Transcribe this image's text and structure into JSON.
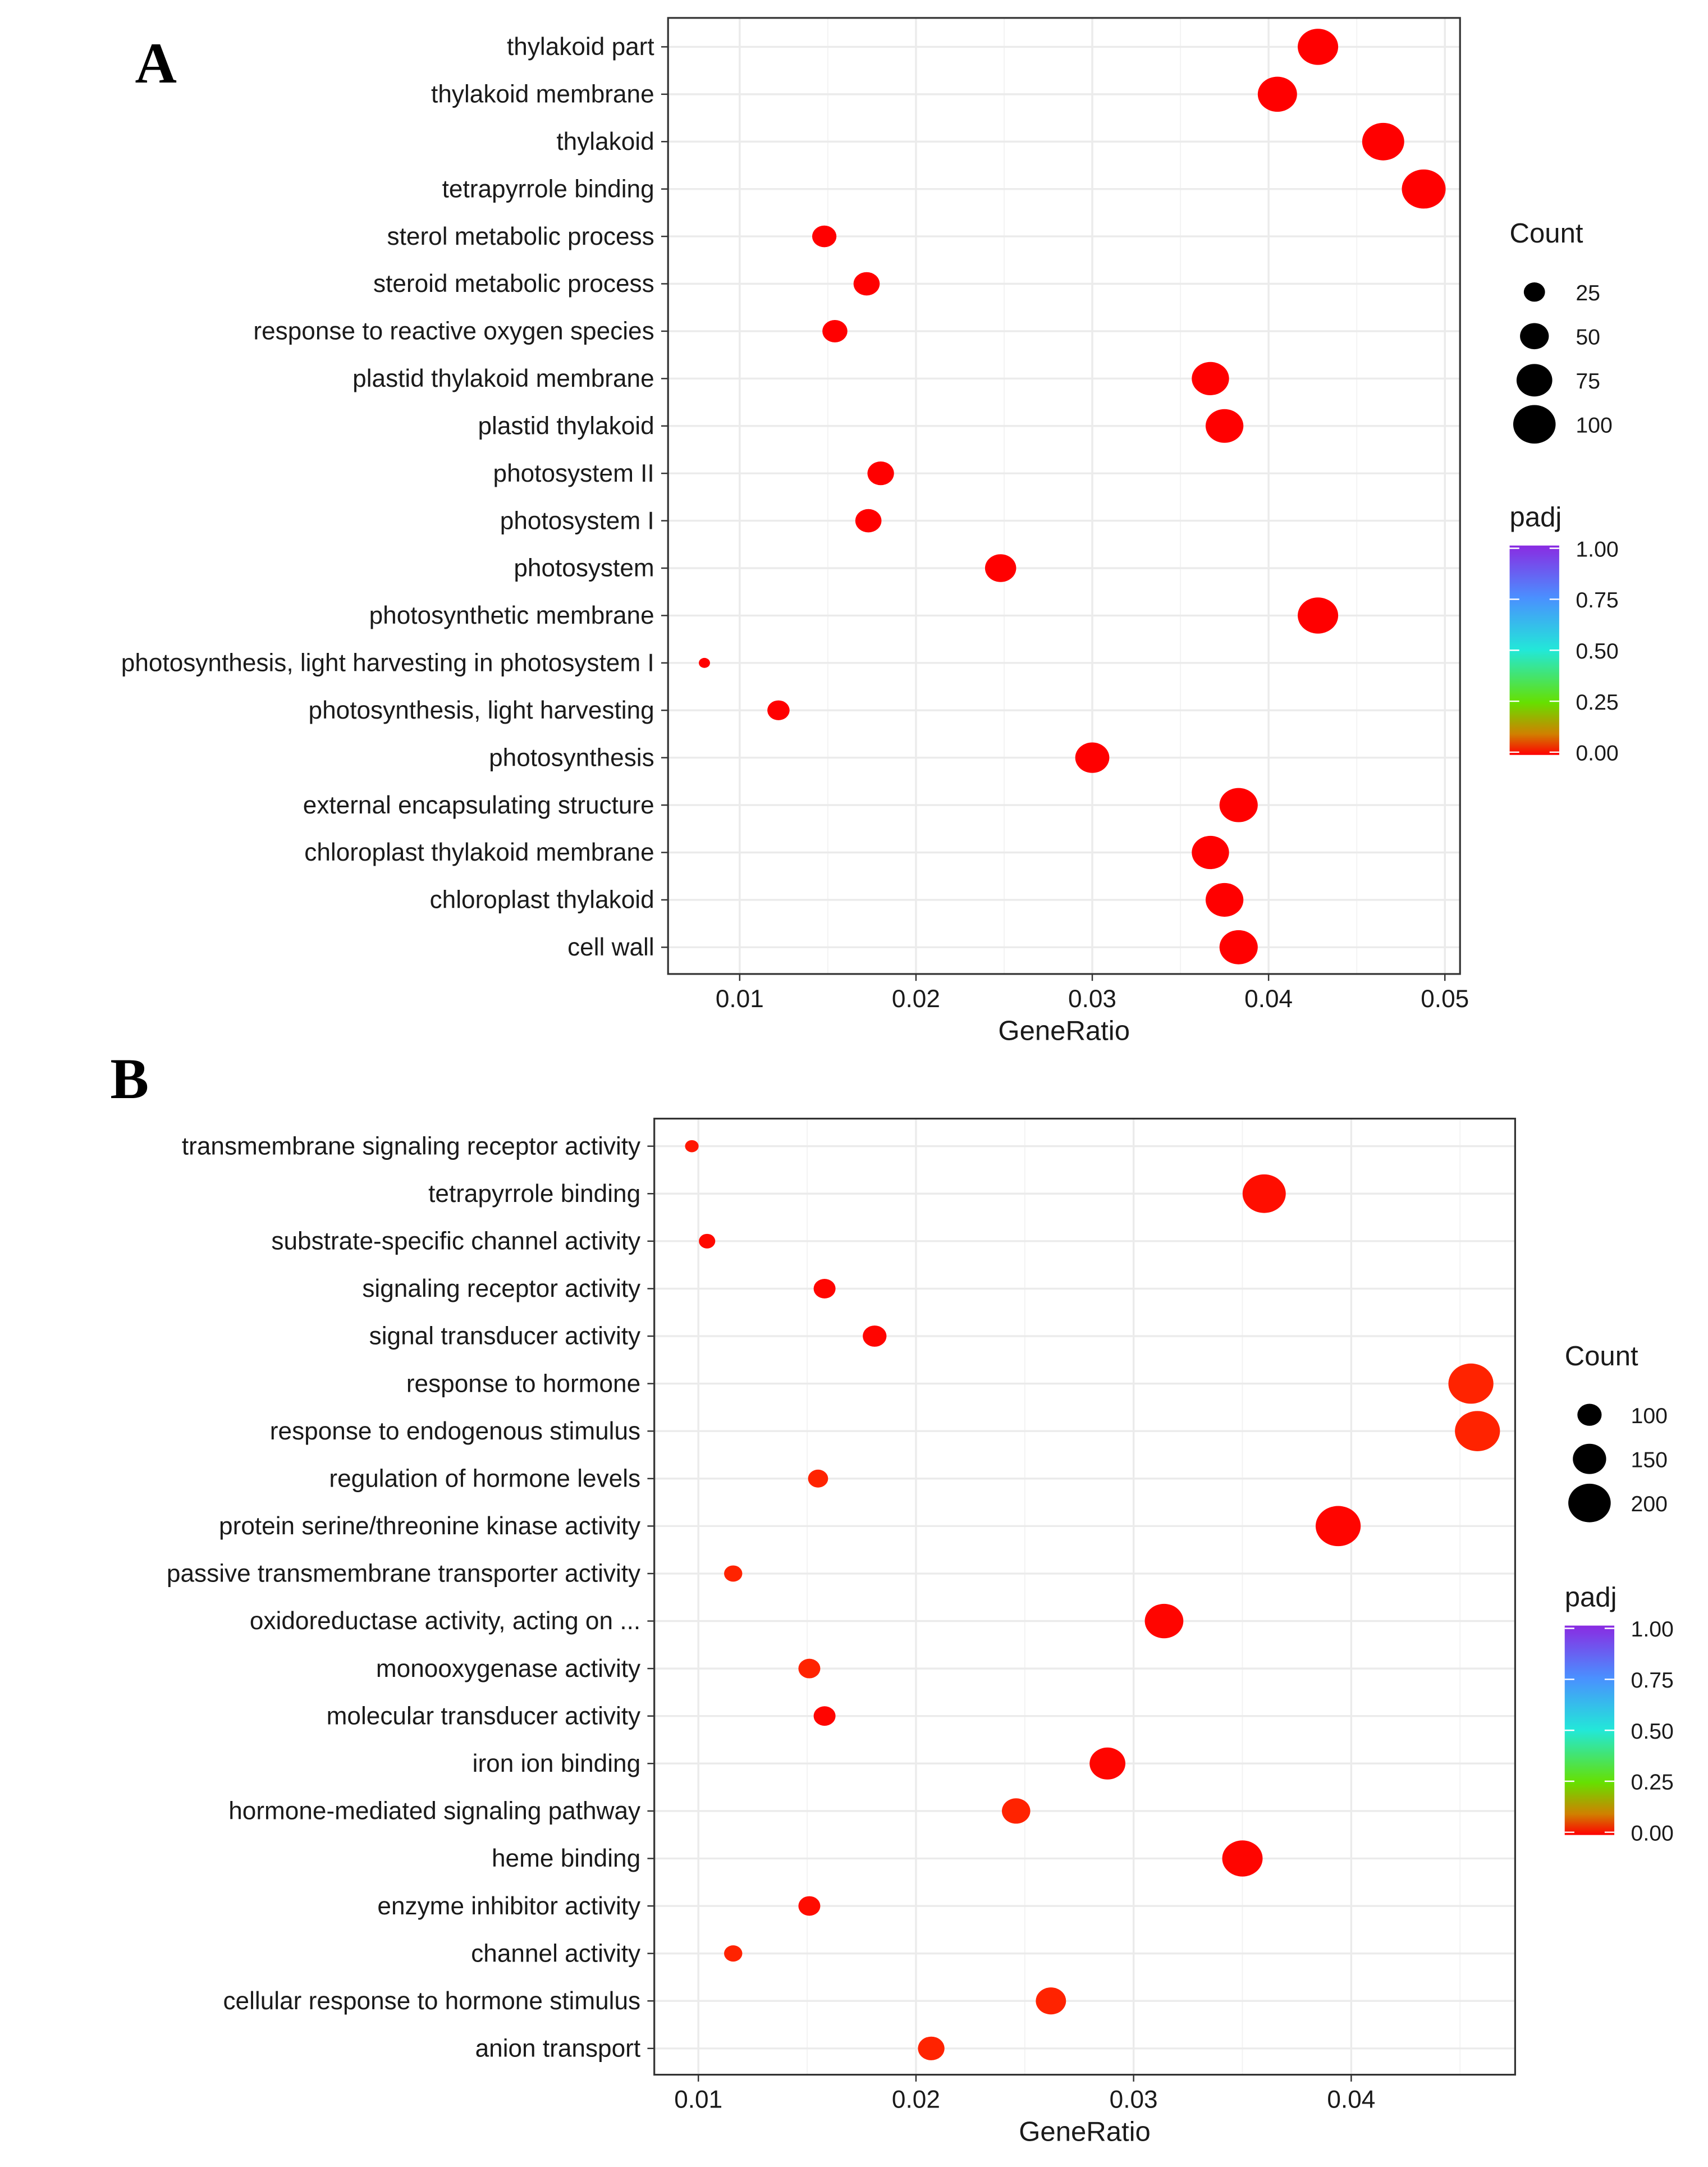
{
  "chart_data": [
    {
      "type": "scatter",
      "panel_label": "A",
      "xlabel": "GeneRatio",
      "xlim": [
        0.006,
        0.0505
      ],
      "xticks": [
        "0.01",
        "0.02",
        "0.03",
        "0.04",
        "0.05"
      ],
      "size_legend": {
        "title": "Count",
        "values": [
          25,
          50,
          75,
          100
        ]
      },
      "color_legend": {
        "title": "padj",
        "ticks": [
          "1.00",
          "0.75",
          "0.50",
          "0.25",
          "0.00"
        ]
      },
      "grid": true,
      "points": [
        {
          "term": "thylakoid part",
          "x": 0.0428,
          "count": 85,
          "padj": 0.0
        },
        {
          "term": "thylakoid membrane",
          "x": 0.0405,
          "count": 80,
          "padj": 0.0
        },
        {
          "term": "thylakoid",
          "x": 0.0465,
          "count": 92,
          "padj": 0.0
        },
        {
          "term": "tetrapyrrole binding",
          "x": 0.0488,
          "count": 100,
          "padj": 0.0
        },
        {
          "term": "sterol metabolic process",
          "x": 0.0148,
          "count": 30,
          "padj": 0.0
        },
        {
          "term": "steroid metabolic process",
          "x": 0.0172,
          "count": 35,
          "padj": 0.0
        },
        {
          "term": "response to reactive oxygen species",
          "x": 0.0154,
          "count": 32,
          "padj": 0.0
        },
        {
          "term": "plastid thylakoid membrane",
          "x": 0.0367,
          "count": 72,
          "padj": 0.0
        },
        {
          "term": "plastid thylakoid",
          "x": 0.0375,
          "count": 74,
          "padj": 0.0
        },
        {
          "term": "photosystem II",
          "x": 0.018,
          "count": 36,
          "padj": 0.0
        },
        {
          "term": "photosystem I",
          "x": 0.0173,
          "count": 35,
          "padj": 0.0
        },
        {
          "term": "photosystem",
          "x": 0.0248,
          "count": 50,
          "padj": 0.0
        },
        {
          "term": "photosynthetic membrane",
          "x": 0.0428,
          "count": 85,
          "padj": 0.0
        },
        {
          "term": "photosynthesis, light harvesting in photosystem I",
          "x": 0.008,
          "count": 6,
          "padj": 0.0
        },
        {
          "term": "photosynthesis, light harvesting",
          "x": 0.0122,
          "count": 25,
          "padj": 0.0
        },
        {
          "term": "photosynthesis",
          "x": 0.03,
          "count": 60,
          "padj": 0.0
        },
        {
          "term": "external encapsulating structure",
          "x": 0.0383,
          "count": 76,
          "padj": 0.0
        },
        {
          "term": "chloroplast thylakoid membrane",
          "x": 0.0367,
          "count": 72,
          "padj": 0.0
        },
        {
          "term": "chloroplast thylakoid",
          "x": 0.0375,
          "count": 74,
          "padj": 0.0
        },
        {
          "term": "cell wall",
          "x": 0.0383,
          "count": 76,
          "padj": 0.0
        }
      ]
    },
    {
      "type": "scatter",
      "panel_label": "B",
      "xlabel": "GeneRatio",
      "xlim": [
        0.008,
        0.0476
      ],
      "xticks": [
        "0.01",
        "0.02",
        "0.03",
        "0.04"
      ],
      "size_legend": {
        "title": "Count",
        "values": [
          100,
          150,
          200
        ]
      },
      "color_legend": {
        "title": "padj",
        "ticks": [
          "1.00",
          "0.75",
          "0.50",
          "0.25",
          "0.00"
        ]
      },
      "grid": true,
      "points": [
        {
          "term": "transmembrane signaling receptor activity",
          "x": 0.0097,
          "count": 40,
          "padj": 0.02
        },
        {
          "term": "tetrapyrrole binding",
          "x": 0.036,
          "count": 200,
          "padj": 0.012
        },
        {
          "term": "substrate-specific channel activity",
          "x": 0.0104,
          "count": 55,
          "padj": 0.008
        },
        {
          "term": "signaling receptor activity",
          "x": 0.0158,
          "count": 85,
          "padj": 0.004
        },
        {
          "term": "signal transducer activity",
          "x": 0.0181,
          "count": 95,
          "padj": 0.004
        },
        {
          "term": "response to hormone",
          "x": 0.0455,
          "count": 210,
          "padj": 0.03
        },
        {
          "term": "response to endogenous stimulus",
          "x": 0.0458,
          "count": 210,
          "padj": 0.03
        },
        {
          "term": "regulation of hormone levels",
          "x": 0.0155,
          "count": 75,
          "padj": 0.03
        },
        {
          "term": "protein serine/threonine kinase activity",
          "x": 0.0394,
          "count": 210,
          "padj": 0.004
        },
        {
          "term": "passive transmembrane transporter activity",
          "x": 0.0116,
          "count": 65,
          "padj": 0.03
        },
        {
          "term": "oxidoreductase activity, acting on ...",
          "x": 0.0314,
          "count": 175,
          "padj": 0.004
        },
        {
          "term": "monooxygenase activity",
          "x": 0.0151,
          "count": 85,
          "padj": 0.03
        },
        {
          "term": "molecular transducer activity",
          "x": 0.0158,
          "count": 85,
          "padj": 0.004
        },
        {
          "term": "iron ion binding",
          "x": 0.0288,
          "count": 160,
          "padj": 0.004
        },
        {
          "term": "hormone-mediated signaling pathway",
          "x": 0.0246,
          "count": 120,
          "padj": 0.03
        },
        {
          "term": "heme binding",
          "x": 0.035,
          "count": 185,
          "padj": 0.004
        },
        {
          "term": "enzyme inhibitor activity",
          "x": 0.0151,
          "count": 85,
          "padj": 0.01
        },
        {
          "term": "channel activity",
          "x": 0.0116,
          "count": 65,
          "padj": 0.03
        },
        {
          "term": "cellular response to hormone stimulus",
          "x": 0.0262,
          "count": 130,
          "padj": 0.03
        },
        {
          "term": "anion transport",
          "x": 0.0207,
          "count": 110,
          "padj": 0.03
        }
      ]
    }
  ]
}
